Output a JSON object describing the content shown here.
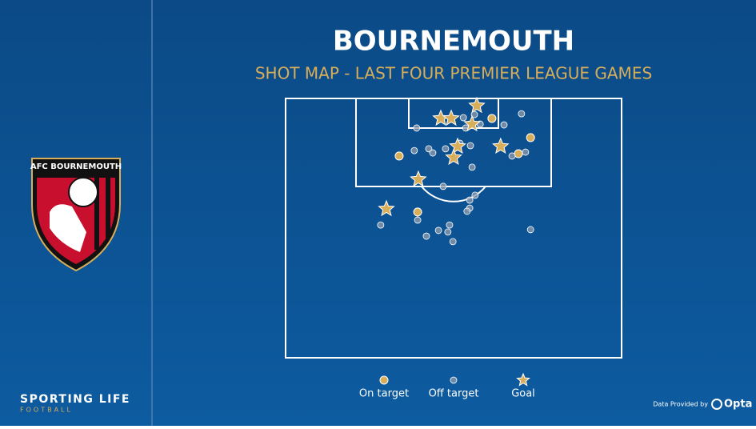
{
  "chart_data": {
    "type": "scatter",
    "title": "BOURNEMOUTH",
    "subtitle": "SHOT MAP - LAST FOUR PREMIER LEAGUE GAMES",
    "xlim": [
      0,
      100
    ],
    "ylim": [
      0,
      100
    ],
    "series": [
      {
        "name": "On target",
        "color": "#d8ae5a",
        "marker": "circle",
        "x": [
          61.4,
          72.9,
          69.3,
          33.8,
          39.3
        ],
        "values": [
          7.7,
          15.1,
          21.3,
          22.2,
          43.8
        ]
      },
      {
        "name": "Off target",
        "color": "#8f9db0",
        "marker": "circle",
        "x": [
          52.9,
          56.2,
          57.9,
          53.6,
          39.0,
          65.0,
          70.2,
          38.3,
          42.6,
          43.8,
          47.6,
          55.0,
          67.4,
          71.4,
          55.5,
          46.9,
          56.4,
          54.8,
          54.8,
          54.0,
          48.8,
          48.3,
          41.9,
          45.5,
          49.8,
          39.3,
          28.3,
          72.9,
          51.9
        ],
        "values": [
          7.4,
          6.2,
          9.9,
          11.4,
          11.4,
          10.2,
          5.9,
          20.1,
          19.4,
          21.0,
          19.4,
          18.2,
          22.2,
          20.7,
          26.5,
          33.9,
          37.3,
          39.2,
          42.3,
          43.5,
          48.8,
          51.5,
          53.1,
          50.9,
          55.2,
          46.9,
          48.8,
          50.6,
          17.3
        ]
      },
      {
        "name": "Goal",
        "color": "#d8ae5a",
        "marker": "star",
        "x": [
          56.9,
          46.2,
          49.3,
          55.5,
          51.2,
          50.0,
          64.0,
          39.5,
          30.0
        ],
        "values": [
          2.8,
          7.7,
          7.7,
          9.9,
          18.5,
          22.8,
          18.5,
          31.2,
          42.6
        ]
      }
    ]
  },
  "crest_text": "AFC BOURNEMOUTH",
  "brand": "SPORTING LIFE",
  "brand_sub": "FOOTBALL",
  "credit": "Data Provided by",
  "provider": "Opta"
}
